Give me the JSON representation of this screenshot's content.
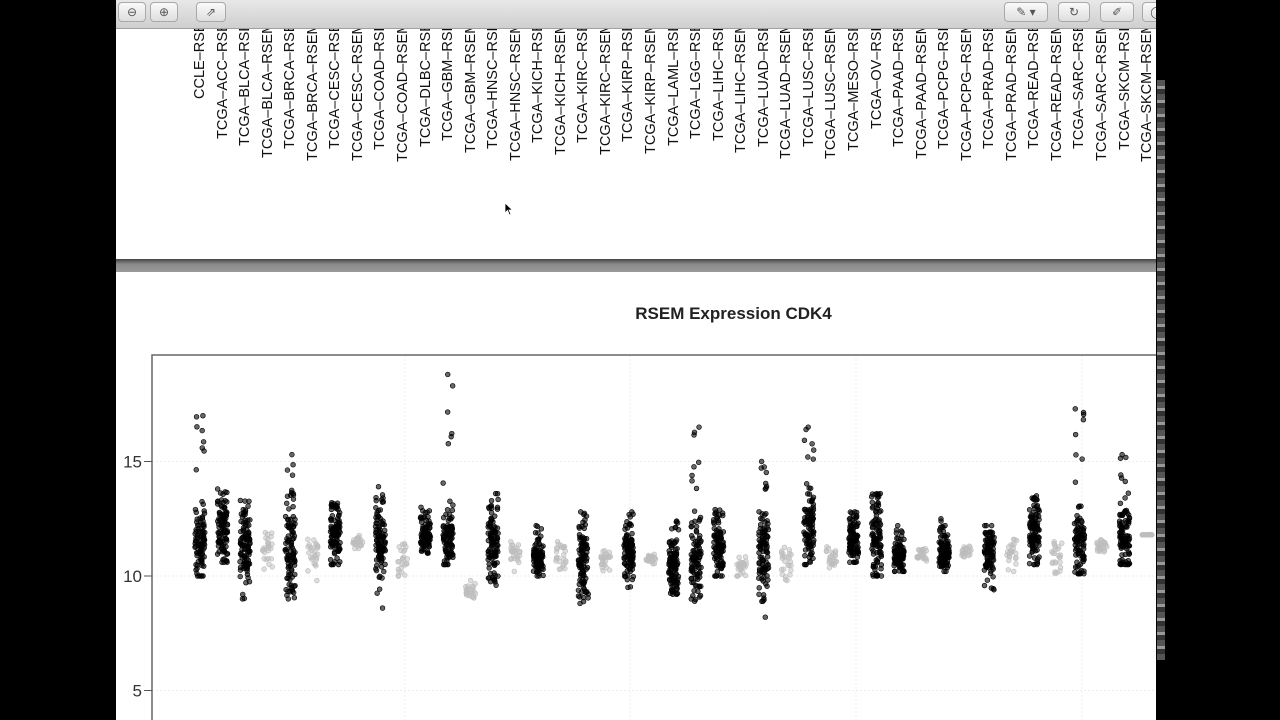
{
  "toolbar": {
    "left_buttons": [
      {
        "icon": "zoom-out-icon",
        "glyph": "⊖"
      },
      {
        "icon": "zoom-in-icon",
        "glyph": "⊕"
      },
      {
        "icon": "share-icon",
        "glyph": "⇗"
      }
    ],
    "right_buttons": [
      {
        "icon": "annotate-pen-icon",
        "glyph": "✎ ▾"
      },
      {
        "icon": "rotate-icon",
        "glyph": "↻"
      },
      {
        "icon": "edit-icon",
        "glyph": "✐"
      },
      {
        "icon": "search-icon",
        "glyph": "◯"
      }
    ]
  },
  "previous_page": {
    "xtick_labels": [
      "CCLE–RSE",
      "TCGA–ACC–RSE",
      "TCGA–BLCA–RSE",
      "TCGA–BLCA–RSEM",
      "TCGA–BRCA–RSE",
      "TCGA–BRCA–RSEM",
      "TCGA–CESC–RSE",
      "TCGA–CESC–RSEM",
      "TCGA–COAD–RSE",
      "TCGA–COAD–RSEM",
      "TCGA–DLBC–RSE",
      "TCGA–GBM–RSE",
      "TCGA–GBM–RSEM",
      "TCGA–HNSC–RSE",
      "TCGA–HNSC–RSEM",
      "TCGA–KICH–RSE",
      "TCGA–KICH–RSEM",
      "TCGA–KIRC–RSE",
      "TCGA–KIRC–RSEM",
      "TCGA–KIRP–RSE",
      "TCGA–KIRP–RSEM",
      "TCGA–LAML–RSE",
      "TCGA–LGG–RSE",
      "TCGA–LIHC–RSE",
      "TCGA–LIHC–RSEM",
      "TCGA–LUAD–RSE",
      "TCGA–LUAD–RSEM",
      "TCGA–LUSC–RSE",
      "TCGA–LUSC–RSEM",
      "TCGA–MESO–RSE",
      "TCGA–OV–RSE",
      "TCGA–PAAD–RSE",
      "TCGA–PAAD–RSEM",
      "TCGA–PCPG–RSE",
      "TCGA–PCPG–RSEM",
      "TCGA–PRAD–RSE",
      "TCGA–PRAD–RSEM",
      "TCGA–READ–RSE",
      "TCGA–READ–RSEM",
      "TCGA–SARC–RSE",
      "TCGA–SARC–RSEM",
      "TCGA–SKCM–RSE",
      "TCGA–SKCM–RSEM"
    ]
  },
  "chart_data": {
    "type": "scatter",
    "title": "RSEM Expression CDK4",
    "yticks": [
      5,
      10,
      15
    ],
    "ylim": [
      4,
      19.5
    ],
    "grid": true,
    "colors": {
      "dark": "#000000",
      "light": "#bdbdbd"
    },
    "groups": [
      {
        "core": [
          10,
          12.8
        ],
        "range": [
          10,
          17
        ],
        "shade": "dark"
      },
      {
        "core": [
          10.8,
          13.2
        ],
        "range": [
          10.6,
          13.8
        ],
        "shade": "dark"
      },
      {
        "core": [
          10.2,
          12.6
        ],
        "range": [
          9,
          13.3
        ],
        "shade": "dark"
      },
      {
        "core": [
          10.4,
          11.9
        ],
        "range": [
          10.3,
          11.9
        ],
        "shade": "light"
      },
      {
        "core": [
          9.5,
          13
        ],
        "range": [
          9,
          15.3
        ],
        "shade": "dark"
      },
      {
        "core": [
          10.3,
          11.6
        ],
        "range": [
          9.8,
          11.6
        ],
        "shade": "light"
      },
      {
        "core": [
          10.5,
          13
        ],
        "range": [
          10.5,
          13.2
        ],
        "shade": "dark"
      },
      {
        "core": [
          11.2,
          11.8
        ],
        "range": [
          11.2,
          11.8
        ],
        "shade": "light"
      },
      {
        "core": [
          10,
          12.8
        ],
        "range": [
          8.6,
          13.9
        ],
        "shade": "dark"
      },
      {
        "core": [
          9.8,
          11.4
        ],
        "range": [
          9.8,
          11.4
        ],
        "shade": "light"
      },
      {
        "core": [
          11,
          12.5
        ],
        "range": [
          11,
          13
        ],
        "shade": "dark"
      },
      {
        "core": [
          10.5,
          12.8
        ],
        "range": [
          10.5,
          18.8
        ],
        "shade": "dark"
      },
      {
        "core": [
          8.8,
          9.8
        ],
        "range": [
          8.8,
          9.8
        ],
        "shade": "light"
      },
      {
        "core": [
          10,
          12.8
        ],
        "range": [
          9.6,
          13.6
        ],
        "shade": "dark"
      },
      {
        "core": [
          10.2,
          11.5
        ],
        "range": [
          10.2,
          11.5
        ],
        "shade": "light"
      },
      {
        "core": [
          10,
          11.5
        ],
        "range": [
          10,
          12.2
        ],
        "shade": "dark"
      },
      {
        "core": [
          10.2,
          11.5
        ],
        "range": [
          10.2,
          11.5
        ],
        "shade": "light"
      },
      {
        "core": [
          9.3,
          12
        ],
        "range": [
          8.8,
          12.8
        ],
        "shade": "dark"
      },
      {
        "core": [
          10.2,
          11.1
        ],
        "range": [
          10.2,
          11.1
        ],
        "shade": "light"
      },
      {
        "core": [
          10,
          12
        ],
        "range": [
          9.5,
          12.8
        ],
        "shade": "dark"
      },
      {
        "core": [
          10.5,
          11
        ],
        "range": [
          10.5,
          11
        ],
        "shade": "light"
      },
      {
        "core": [
          9.4,
          11.5
        ],
        "range": [
          9.2,
          12.4
        ],
        "shade": "dark"
      },
      {
        "core": [
          9.2,
          12.5
        ],
        "range": [
          8.9,
          16.5
        ],
        "shade": "dark"
      },
      {
        "core": [
          10,
          12.5
        ],
        "range": [
          10,
          12.9
        ],
        "shade": "dark"
      },
      {
        "core": [
          10,
          10.9
        ],
        "range": [
          10,
          10.9
        ],
        "shade": "light"
      },
      {
        "core": [
          9.6,
          12.8
        ],
        "range": [
          8.2,
          15
        ],
        "shade": "dark"
      },
      {
        "core": [
          9.8,
          11.5
        ],
        "range": [
          9.8,
          11.5
        ],
        "shade": "light"
      },
      {
        "core": [
          10.5,
          13.6
        ],
        "range": [
          10.5,
          16.5
        ],
        "shade": "dark"
      },
      {
        "core": [
          10,
          11.5
        ],
        "range": [
          10,
          11.5
        ],
        "shade": "light"
      },
      {
        "core": [
          10.6,
          12.5
        ],
        "range": [
          10.6,
          12.8
        ],
        "shade": "dark"
      },
      {
        "core": [
          10.1,
          13.4
        ],
        "range": [
          10,
          13.6
        ],
        "shade": "dark"
      },
      {
        "core": [
          10.2,
          11.5
        ],
        "range": [
          10.2,
          12.2
        ],
        "shade": "dark"
      },
      {
        "core": [
          10.6,
          11.2
        ],
        "range": [
          10.6,
          11.2
        ],
        "shade": "light"
      },
      {
        "core": [
          10.2,
          11.8
        ],
        "range": [
          10.2,
          12.5
        ],
        "shade": "dark"
      },
      {
        "core": [
          10.8,
          11.3
        ],
        "range": [
          10.8,
          11.3
        ],
        "shade": "light"
      },
      {
        "core": [
          10,
          12.2
        ],
        "range": [
          9.4,
          12.2
        ],
        "shade": "dark"
      },
      {
        "core": [
          10.2,
          11.6
        ],
        "range": [
          10.2,
          11.6
        ],
        "shade": "light"
      },
      {
        "core": [
          10.5,
          13.3
        ],
        "range": [
          10.5,
          13.5
        ],
        "shade": "dark"
      },
      {
        "core": [
          10,
          11.5
        ],
        "range": [
          10,
          11.5
        ],
        "shade": "light"
      },
      {
        "core": [
          10.1,
          12.9
        ],
        "range": [
          10.1,
          17.3
        ],
        "shade": "dark"
      },
      {
        "core": [
          11,
          11.6
        ],
        "range": [
          11,
          11.6
        ],
        "shade": "light"
      },
      {
        "core": [
          10.6,
          13.2
        ],
        "range": [
          10.5,
          15.3
        ],
        "shade": "dark"
      },
      {
        "core": [
          11.8,
          11.8
        ],
        "range": [
          11.8,
          11.8
        ],
        "shade": "light"
      }
    ]
  }
}
